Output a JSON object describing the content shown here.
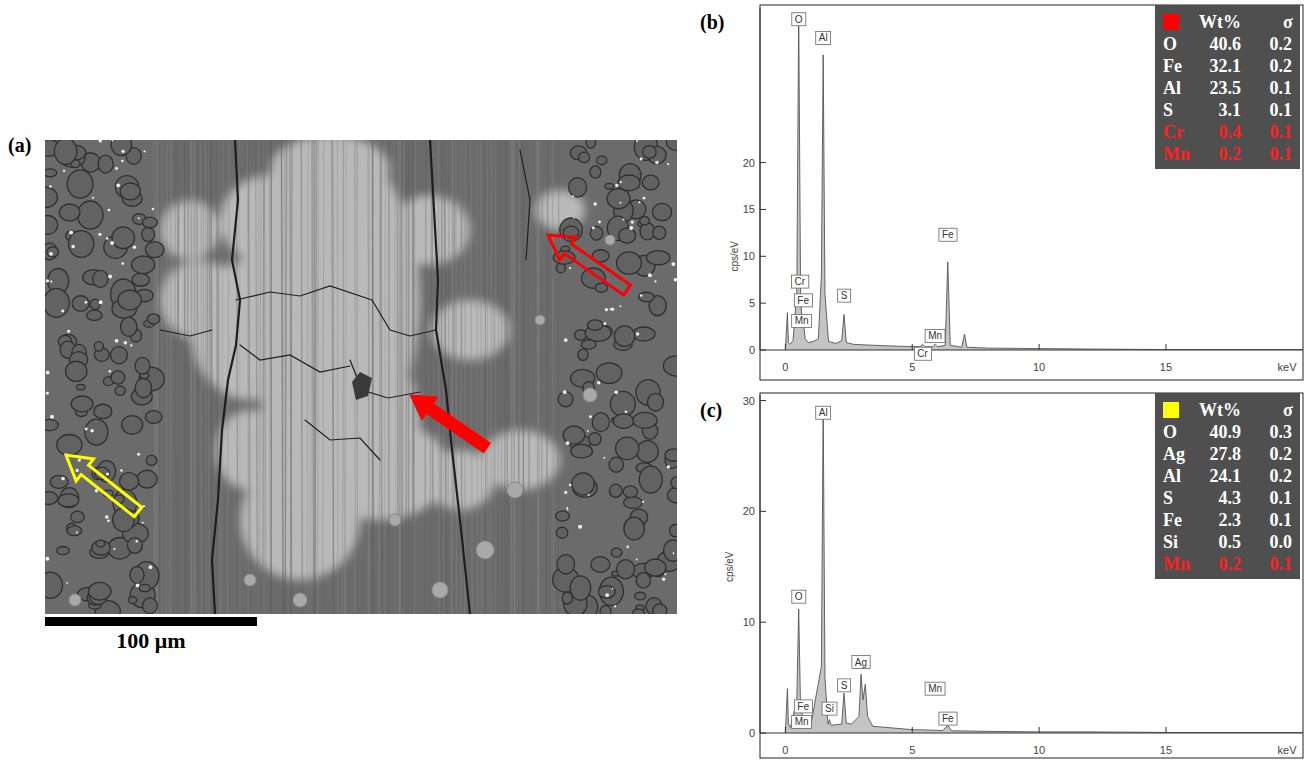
{
  "image": {
    "label": "(a)",
    "scale_bar": "100 μm"
  },
  "chart_data": [
    {
      "type": "area",
      "title": "(b)",
      "x_label": "keV",
      "y_label": "cps/eV",
      "color": "#c4c4c4",
      "x": [
        0,
        0.08,
        0.12,
        0.18,
        0.3,
        0.45,
        0.525,
        0.6,
        0.65,
        0.7,
        0.78,
        0.9,
        1.1,
        1.3,
        1.42,
        1.49,
        1.56,
        1.7,
        2.0,
        2.22,
        2.31,
        2.4,
        2.7,
        3.5,
        4.5,
        5.3,
        5.41,
        5.5,
        5.8,
        5.9,
        6.0,
        6.3,
        6.4,
        6.5,
        6.95,
        7.06,
        7.15,
        8,
        10,
        12,
        15,
        18,
        20.4
      ],
      "values": [
        0,
        4.0,
        0.8,
        0.6,
        1.0,
        6,
        36,
        6,
        3.0,
        3.2,
        1.2,
        0.8,
        0.9,
        1.2,
        8,
        31.5,
        6,
        0.9,
        0.7,
        1.0,
        3.8,
        0.8,
        0.6,
        0.5,
        0.4,
        0.35,
        0.6,
        0.35,
        0.35,
        0.6,
        0.35,
        0.5,
        9.4,
        0.5,
        0.3,
        1.7,
        0.3,
        0.2,
        0.15,
        0.1,
        0.05,
        0.05,
        0.05
      ],
      "xlim": [
        -1,
        20.4
      ],
      "xticks": [
        0,
        5,
        10,
        15
      ],
      "ylim": [
        0,
        36.5
      ],
      "yticks": [
        0,
        5,
        10,
        15,
        20
      ],
      "annotations": [
        {
          "text": "O",
          "x": 0.525,
          "y": 35.3
        },
        {
          "text": "Al",
          "x": 1.49,
          "y": 33.3
        },
        {
          "text": "Cr",
          "x": 0.57,
          "y": 7.3
        },
        {
          "text": "Fe",
          "x": 0.7,
          "y": 5.3
        },
        {
          "text": "Mn",
          "x": 0.64,
          "y": 3.1
        },
        {
          "text": "S",
          "x": 2.31,
          "y": 5.8
        },
        {
          "text": "Mn",
          "x": 5.9,
          "y": 1.5
        },
        {
          "text": "Cr",
          "x": 5.41,
          "y": -0.4
        },
        {
          "text": "Fe",
          "x": 6.4,
          "y": 12.3
        }
      ],
      "table": {
        "swatch_color": "#ff0000",
        "header": [
          "Wt%",
          "σ"
        ],
        "rows": [
          {
            "element": "O",
            "wt": "40.6",
            "sigma": "0.2",
            "color": "#ffffff"
          },
          {
            "element": "Fe",
            "wt": "32.1",
            "sigma": "0.2",
            "color": "#ffffff"
          },
          {
            "element": "Al",
            "wt": "23.5",
            "sigma": "0.1",
            "color": "#ffffff"
          },
          {
            "element": "S",
            "wt": "3.1",
            "sigma": "0.1",
            "color": "#ffffff"
          },
          {
            "element": "Cr",
            "wt": "0.4",
            "sigma": "0.1",
            "color": "#ff2020"
          },
          {
            "element": "Mn",
            "wt": "0.2",
            "sigma": "0.1",
            "color": "#ff2020"
          }
        ]
      }
    },
    {
      "type": "area",
      "title": "(c)",
      "x_label": "keV",
      "y_label": "cps/eV",
      "color": "#c4c4c4",
      "x": [
        0,
        0.08,
        0.12,
        0.2,
        0.45,
        0.525,
        0.6,
        0.7,
        0.8,
        1.0,
        1.42,
        1.49,
        1.56,
        1.68,
        1.74,
        1.8,
        2.22,
        2.31,
        2.4,
        2.6,
        2.9,
        2.98,
        3.06,
        3.15,
        3.24,
        3.35,
        3.45,
        4.0,
        5.0,
        5.9,
        6.2,
        6.4,
        6.55,
        8,
        10,
        12,
        15,
        18,
        20.4
      ],
      "values": [
        0,
        4.0,
        0.8,
        0.5,
        3,
        11.2,
        2,
        1.5,
        0.8,
        0.7,
        6,
        29.5,
        5,
        0.8,
        1.2,
        0.7,
        0.8,
        3.6,
        0.9,
        0.8,
        1.5,
        5.3,
        3.0,
        4.4,
        1.5,
        1.0,
        0.6,
        0.5,
        0.3,
        0.25,
        0.2,
        0.7,
        0.2,
        0.15,
        0.1,
        0.1,
        0.05,
        0.05,
        0.05
      ],
      "xlim": [
        -1,
        20.4
      ],
      "xticks": [
        0,
        5,
        10,
        15
      ],
      "ylim": [
        0,
        30.5
      ],
      "yticks": [
        0,
        10,
        20,
        30
      ],
      "annotations": [
        {
          "text": "Al",
          "x": 1.49,
          "y": 28.9
        },
        {
          "text": "O",
          "x": 0.525,
          "y": 12.3
        },
        {
          "text": "Fe",
          "x": 0.7,
          "y": 2.4
        },
        {
          "text": "Mn",
          "x": 0.64,
          "y": 1.0
        },
        {
          "text": "Si",
          "x": 1.74,
          "y": 2.2
        },
        {
          "text": "S",
          "x": 2.31,
          "y": 4.3
        },
        {
          "text": "Ag",
          "x": 2.98,
          "y": 6.4
        },
        {
          "text": "Mn",
          "x": 5.9,
          "y": 4.0
        },
        {
          "text": "Fe",
          "x": 6.4,
          "y": 1.3
        }
      ],
      "table": {
        "swatch_color": "#ffff00",
        "header": [
          "Wt%",
          "σ"
        ],
        "rows": [
          {
            "element": "O",
            "wt": "40.9",
            "sigma": "0.3",
            "color": "#ffffff"
          },
          {
            "element": "Ag",
            "wt": "27.8",
            "sigma": "0.2",
            "color": "#ffffff"
          },
          {
            "element": "Al",
            "wt": "24.1",
            "sigma": "0.2",
            "color": "#ffffff"
          },
          {
            "element": "S",
            "wt": "4.3",
            "sigma": "0.1",
            "color": "#ffffff"
          },
          {
            "element": "Fe",
            "wt": "2.3",
            "sigma": "0.1",
            "color": "#ffffff"
          },
          {
            "element": "Si",
            "wt": "0.5",
            "sigma": "0.0",
            "color": "#ffffff"
          },
          {
            "element": "Mn",
            "wt": "0.2",
            "sigma": "0.1",
            "color": "#ff2020"
          }
        ]
      }
    }
  ]
}
